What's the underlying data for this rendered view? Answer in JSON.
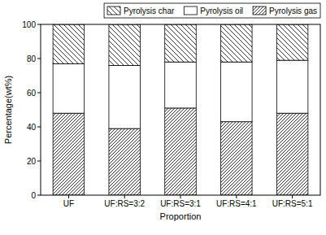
{
  "chart_data": {
    "type": "bar",
    "stacked": true,
    "x_label": "Proportion",
    "y_label": "Percentage(wt%)",
    "categories": [
      "UF",
      "UF:RS=3:2",
      "UF:RS=3:1",
      "UF:RS=4:1",
      "UF:RS=5:1"
    ],
    "series": [
      {
        "name": "Pyrolysis gas",
        "color": "#000000",
        "values": [
          48,
          39,
          51,
          43,
          48
        ]
      },
      {
        "name": "Pyrolysis oil",
        "color": "#ffffff",
        "values": [
          29,
          37,
          27,
          35,
          31
        ]
      },
      {
        "name": "Pyrolysis char",
        "color": "#000000",
        "values": [
          23,
          24,
          22,
          22,
          21
        ]
      }
    ],
    "ylim": [
      0,
      100
    ],
    "yticks": [
      0,
      20,
      40,
      60,
      80,
      100
    ],
    "legend": "top-right",
    "grid": false
  }
}
